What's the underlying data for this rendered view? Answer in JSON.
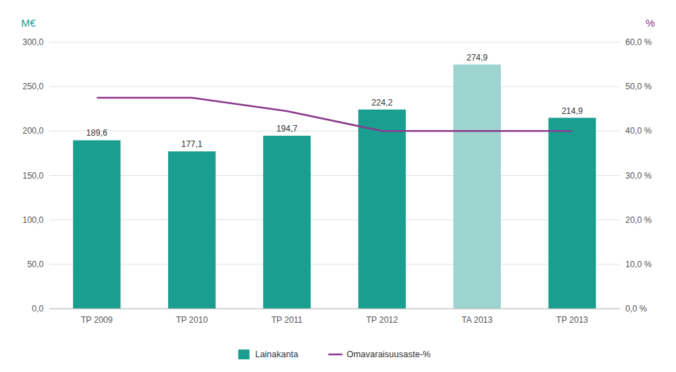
{
  "chart_data": {
    "type": "bar",
    "categories": [
      "TP 2009",
      "TP 2010",
      "TP 2011",
      "TP 2012",
      "TA 2013",
      "TP 2013"
    ],
    "series": [
      {
        "name": "Lainakanta",
        "type": "bar",
        "colors": [
          "#1a9e8f",
          "#1a9e8f",
          "#1a9e8f",
          "#1a9e8f",
          "#9dd4cf",
          "#1a9e8f"
        ],
        "values": [
          189.6,
          177.1,
          194.7,
          224.2,
          274.9,
          214.9
        ],
        "value_labels": [
          "189,6",
          "177,1",
          "194,7",
          "224,2",
          "274,9",
          "214,9"
        ]
      },
      {
        "name": "Omavaraisuusaste-%",
        "type": "line",
        "axis": "y2",
        "color": "#8b3a8b",
        "values": [
          47.5,
          47.5,
          44.5,
          40.0,
          40.0,
          40.0
        ]
      }
    ],
    "ylabel": "M€",
    "y2label": "%",
    "ylim": [
      0,
      300
    ],
    "yticks": [
      {
        "value": 0,
        "label": "0,0"
      },
      {
        "value": 50,
        "label": "50,0"
      },
      {
        "value": 100,
        "label": "100,0"
      },
      {
        "value": 150,
        "label": "150,0"
      },
      {
        "value": 200,
        "label": "200,0"
      },
      {
        "value": 250,
        "label": "250,0"
      },
      {
        "value": 300,
        "label": "300,0"
      }
    ],
    "y2lim": [
      0,
      60
    ],
    "y2ticks": [
      {
        "value": 0,
        "label": "0,0 %"
      },
      {
        "value": 10,
        "label": "10,0 %"
      },
      {
        "value": 20,
        "label": "20,0 %"
      },
      {
        "value": 30,
        "label": "30,0 %"
      },
      {
        "value": 40,
        "label": "40,0 %"
      },
      {
        "value": 50,
        "label": "50,0 %"
      },
      {
        "value": 60,
        "label": "60,0 %"
      }
    ],
    "grid": true,
    "data_labels": true,
    "legend": "bottom"
  }
}
